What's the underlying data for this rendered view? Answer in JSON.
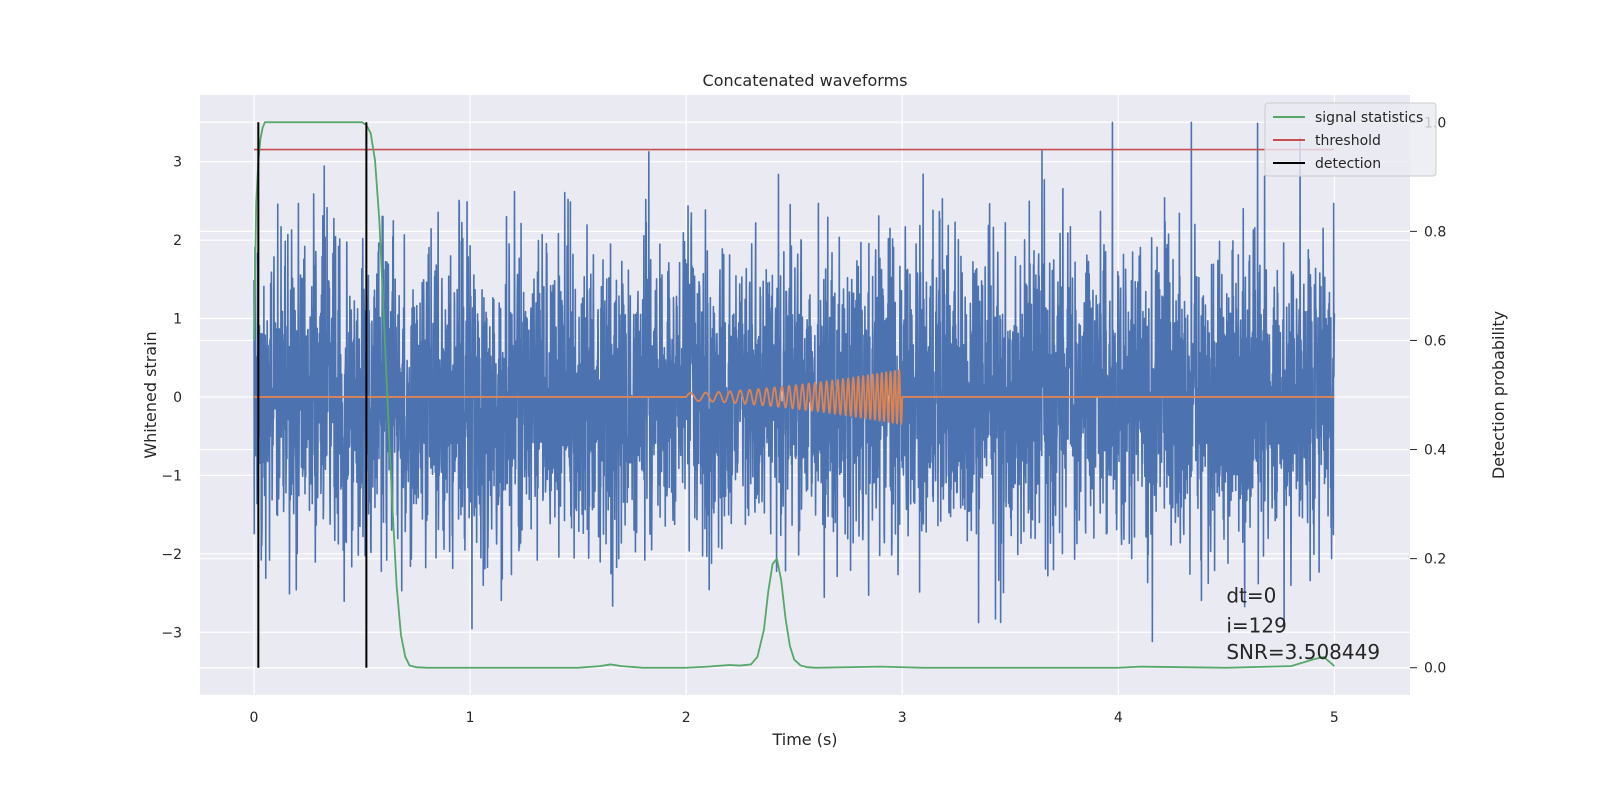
{
  "chart_data": {
    "type": "line",
    "title": "Concatenated waveforms",
    "xlabel": "Time (s)",
    "ylabel": "Whitened strain",
    "y2label": "Detection probability",
    "xlim": [
      -0.25,
      5.35
    ],
    "ylim": [
      -3.8,
      3.85
    ],
    "y2lim": [
      -0.05,
      1.05
    ],
    "x_ticks": [
      0,
      1,
      2,
      3,
      4,
      5
    ],
    "y_ticks": [
      -3,
      -2,
      -1,
      0,
      1,
      2,
      3
    ],
    "y2_ticks": [
      0.0,
      0.2,
      0.4,
      0.6,
      0.8,
      1.0
    ],
    "x_tick_labels": [
      "0",
      "1",
      "2",
      "3",
      "4",
      "5"
    ],
    "y_tick_labels": [
      "−3",
      "−2",
      "−1",
      "0",
      "1",
      "2",
      "3"
    ],
    "y2_tick_labels": [
      "0.0",
      "0.2",
      "0.4",
      "0.6",
      "0.8",
      "1.0"
    ],
    "grid": true,
    "legend_position": "top-right",
    "legend": [
      {
        "label": "signal statistics",
        "color": "#55a868"
      },
      {
        "label": "threshold",
        "color": "#c44e52"
      },
      {
        "label": "detection",
        "color": "#000000"
      }
    ],
    "series": [
      {
        "kind": "noise",
        "axis": "left",
        "color": "#4c72b0",
        "x_range": [
          0,
          5
        ],
        "y_range_approx": [
          -3.45,
          3.5
        ]
      },
      {
        "kind": "chirp",
        "axis": "left",
        "color": "#dd8452",
        "x_start": 2.0,
        "x_end": 3.0,
        "baseline_x": [
          0,
          5
        ],
        "amplitude_start": 0.05,
        "amplitude_end": 0.35
      },
      {
        "name": "signal statistics",
        "axis": "right",
        "color": "#55a868",
        "x": [
          0.0,
          0.01,
          0.02,
          0.03,
          0.04,
          0.05,
          0.07,
          0.1,
          0.2,
          0.3,
          0.4,
          0.48,
          0.5,
          0.52,
          0.54,
          0.56,
          0.58,
          0.6,
          0.62,
          0.64,
          0.66,
          0.68,
          0.7,
          0.72,
          0.75,
          0.8,
          1.0,
          1.5,
          1.6,
          1.65,
          1.7,
          1.8,
          2.0,
          2.1,
          2.2,
          2.25,
          2.3,
          2.33,
          2.36,
          2.38,
          2.4,
          2.42,
          2.44,
          2.46,
          2.48,
          2.5,
          2.53,
          2.56,
          2.6,
          2.9,
          3.1,
          4.0,
          4.1,
          4.5,
          4.8,
          4.9,
          4.95,
          5.0
        ],
        "y": [
          0.6,
          0.85,
          0.93,
          0.97,
          0.99,
          1.0,
          1.0,
          1.0,
          1.0,
          1.0,
          1.0,
          1.0,
          1.0,
          0.995,
          0.98,
          0.93,
          0.82,
          0.65,
          0.47,
          0.3,
          0.15,
          0.06,
          0.02,
          0.004,
          0.001,
          0.0,
          0.0,
          0.0,
          0.003,
          0.006,
          0.003,
          0.0,
          0.0,
          0.002,
          0.005,
          0.004,
          0.006,
          0.02,
          0.07,
          0.14,
          0.19,
          0.2,
          0.16,
          0.09,
          0.04,
          0.015,
          0.004,
          0.001,
          0.0,
          0.002,
          0.0,
          0.0,
          0.002,
          0.0,
          0.003,
          0.015,
          0.02,
          0.003
        ]
      },
      {
        "name": "threshold",
        "axis": "right",
        "color": "#c44e52",
        "x": [
          0,
          5
        ],
        "y": [
          0.95,
          0.95
        ]
      }
    ],
    "detections": {
      "color": "#000000",
      "x": [
        0.02,
        0.52
      ],
      "y2_range": [
        0.0,
        1.0
      ]
    },
    "annotations": [
      "dt=0",
      "i=129",
      "SNR=3.508449"
    ]
  }
}
